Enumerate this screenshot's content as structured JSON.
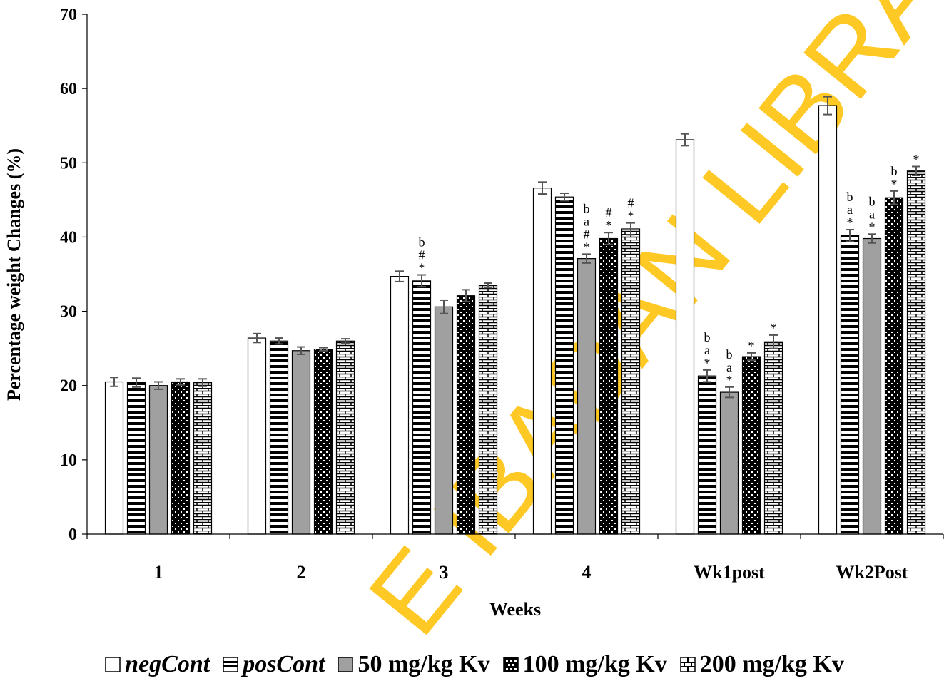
{
  "chart_data": {
    "type": "bar",
    "title": "",
    "xlabel": "Weeks",
    "ylabel": "Percentage weight Changes (%)",
    "ylim": [
      0,
      70
    ],
    "yticks": [
      "0",
      "10",
      "20",
      "30",
      "40",
      "50",
      "60",
      "70"
    ],
    "grid": false,
    "legend_position": "bottom",
    "categories": [
      "1",
      "2",
      "3",
      "4",
      "Wk1post",
      "Wk2Post"
    ],
    "series": [
      {
        "name": "negCont",
        "values": [
          20.5,
          26.4,
          34.7,
          46.6,
          53.1,
          57.7
        ],
        "errors": [
          0.6,
          0.6,
          0.7,
          0.8,
          0.8,
          1.2
        ]
      },
      {
        "name": "posCont",
        "values": [
          20.4,
          26.0,
          34.1,
          45.4,
          21.3,
          40.2
        ],
        "errors": [
          0.6,
          0.4,
          0.8,
          0.5,
          0.8,
          0.8
        ]
      },
      {
        "name": "50 mg/kg Kv",
        "values": [
          20.0,
          24.7,
          30.6,
          37.1,
          19.1,
          39.8
        ],
        "errors": [
          0.5,
          0.5,
          0.9,
          0.6,
          0.7,
          0.6
        ]
      },
      {
        "name": "100 mg/kg Kv",
        "values": [
          20.5,
          24.9,
          32.1,
          39.8,
          23.9,
          45.3
        ],
        "errors": [
          0.4,
          0.2,
          0.8,
          0.8,
          0.5,
          0.9
        ]
      },
      {
        "name": "200 mg/kg Kv",
        "values": [
          20.4,
          26.0,
          33.5,
          41.1,
          25.9,
          48.9
        ],
        "errors": [
          0.5,
          0.3,
          0.3,
          0.8,
          0.9,
          0.6
        ]
      }
    ],
    "annotations": [
      {
        "category": "3",
        "series": "posCont",
        "lines": [
          "b",
          "#",
          "*"
        ]
      },
      {
        "category": "4",
        "series": "50 mg/kg Kv",
        "lines": [
          "b",
          "a",
          "#",
          "*"
        ]
      },
      {
        "category": "4",
        "series": "100 mg/kg Kv",
        "lines": [
          "#",
          "*"
        ]
      },
      {
        "category": "4",
        "series": "200 mg/kg Kv",
        "lines": [
          "#",
          "*"
        ]
      },
      {
        "category": "Wk1post",
        "series": "posCont",
        "lines": [
          "b",
          "a",
          "*"
        ]
      },
      {
        "category": "Wk1post",
        "series": "50 mg/kg Kv",
        "lines": [
          "b",
          "a",
          "*"
        ]
      },
      {
        "category": "Wk1post",
        "series": "100 mg/kg Kv",
        "lines": [
          "*"
        ]
      },
      {
        "category": "Wk1post",
        "series": "200 mg/kg Kv",
        "lines": [
          "*"
        ]
      },
      {
        "category": "Wk2Post",
        "series": "posCont",
        "lines": [
          "b",
          "a",
          "*"
        ]
      },
      {
        "category": "Wk2Post",
        "series": "50 mg/kg Kv",
        "lines": [
          "b",
          "a",
          "*"
        ]
      },
      {
        "category": "Wk2Post",
        "series": "100 mg/kg Kv",
        "lines": [
          "b",
          "*"
        ]
      },
      {
        "category": "Wk2Post",
        "series": "200 mg/kg Kv",
        "lines": [
          "*"
        ]
      }
    ],
    "watermark": "E IBADAN LIBRARY",
    "colors": {
      "negCont": "#ffffff",
      "posCont": "#000000",
      "50 mg/kg Kv": "#a0a0a0",
      "100 mg/kg Kv": "#000000",
      "200 mg/kg Kv": "#000000",
      "watermark": "#ffc000",
      "error_bar": "#555555"
    }
  },
  "legend": {
    "items": [
      {
        "label": "negCont",
        "italic": true,
        "pattern": "white"
      },
      {
        "label": "posCont",
        "italic": true,
        "pattern": "hstripes"
      },
      {
        "label": "50 mg/kg Kv",
        "italic": false,
        "pattern": "gray"
      },
      {
        "label": "100 mg/kg Kv",
        "italic": false,
        "pattern": "checker"
      },
      {
        "label": "200 mg/kg Kv",
        "italic": false,
        "pattern": "brick"
      }
    ]
  }
}
